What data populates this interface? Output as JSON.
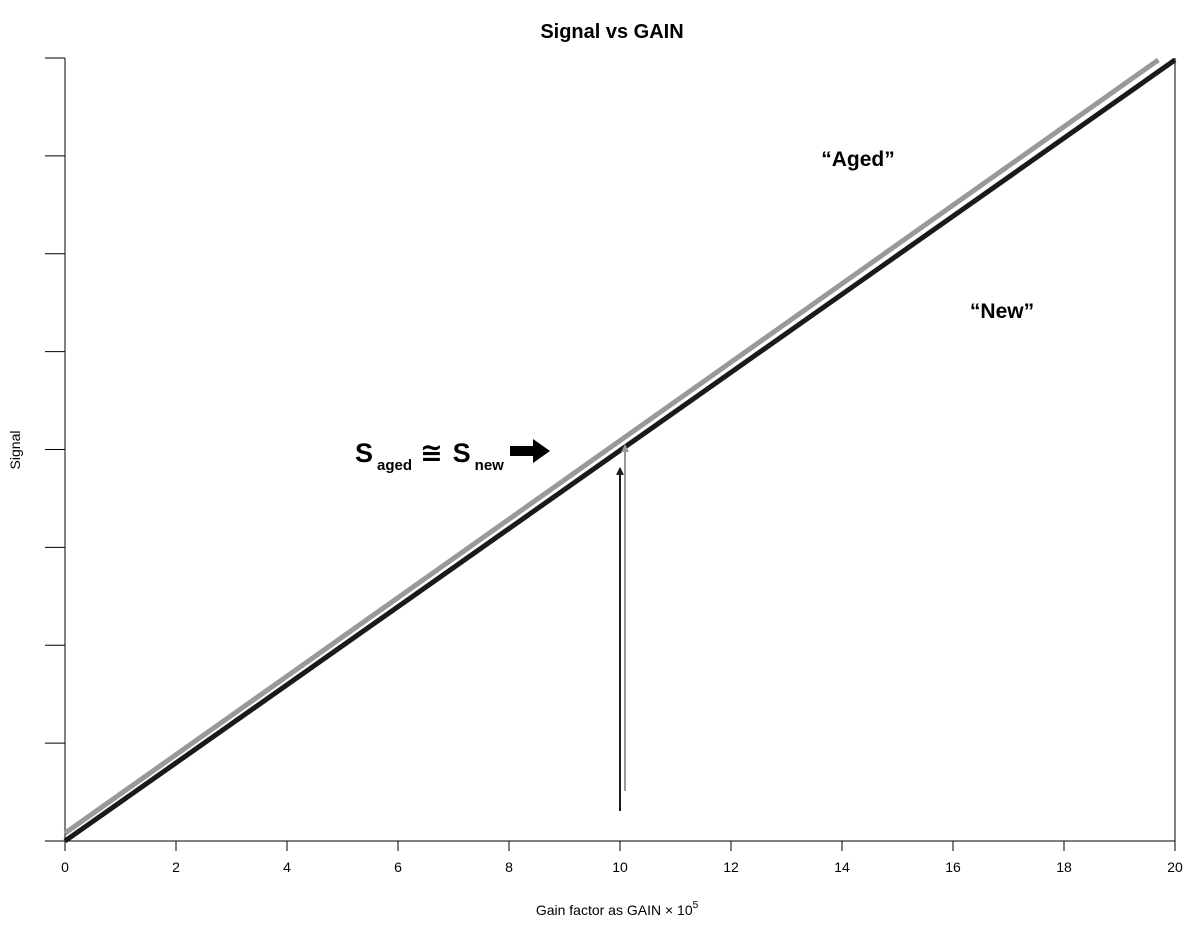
{
  "chart_data": {
    "type": "line",
    "title": "Signal vs GAIN",
    "xlabel": "Gain factor as GAIN × 10",
    "xlabel_exponent": "5",
    "ylabel": "Signal",
    "xlim": [
      0,
      20
    ],
    "ylim": [
      0,
      8
    ],
    "x_ticks": [
      "0",
      "2",
      "4",
      "6",
      "8",
      "10",
      "12",
      "14",
      "16",
      "18",
      "20"
    ],
    "y_ticks_labeled": false,
    "y_tick_count": 9,
    "grid": false,
    "series": [
      {
        "name": "“Aged”",
        "color": "#999999",
        "x": [
          0,
          19.7
        ],
        "y": [
          0.08,
          7.98
        ]
      },
      {
        "name": "“New”",
        "color": "#1a1a1a",
        "x": [
          0,
          20
        ],
        "y": [
          0.0,
          7.98
        ]
      }
    ],
    "annotations": {
      "equation": {
        "main1": "S",
        "sub1": "aged",
        "relation": "≅",
        "main2": "S",
        "sub2": "new"
      },
      "pointer_x": 10
    }
  }
}
